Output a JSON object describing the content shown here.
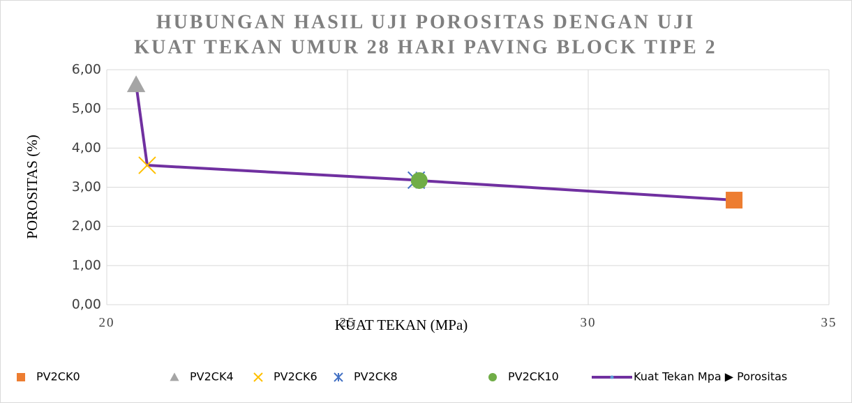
{
  "chart_data": {
    "type": "scatter",
    "title": [
      "HUBUNGAN HASIL UJI POROSITAS DENGAN UJI",
      "KUAT TEKAN UMUR 28 HARI PAVING BLOCK TIPE 2"
    ],
    "xlabel": "KUAT TEKAN (MPa)",
    "ylabel": "POROSITAS (%)",
    "xlim": [
      20,
      35
    ],
    "xticks": [
      20,
      25,
      30,
      35
    ],
    "ylim": [
      0,
      6
    ],
    "yticks": [
      {
        "value": 0,
        "label": "0,00"
      },
      {
        "value": 1,
        "label": "1,00"
      },
      {
        "value": 2,
        "label": "2,00"
      },
      {
        "value": 3,
        "label": "3,00"
      },
      {
        "value": 4,
        "label": "4,00"
      },
      {
        "value": 5,
        "label": "5,00"
      },
      {
        "value": 6,
        "label": "6,00"
      }
    ],
    "grid": true,
    "legend": "bottom",
    "series": [
      {
        "name": "PV2CK0",
        "color": "#ED7D31",
        "marker": "square",
        "x": [
          33.03
        ],
        "values": [
          2.67
        ]
      },
      {
        "name": "PV2CK4",
        "color": "#A5A5A5",
        "marker": "triangle",
        "x": [
          20.61
        ],
        "values": [
          5.62
        ]
      },
      {
        "name": "PV2CK6",
        "color": "#FFC000",
        "marker": "x",
        "x": [
          20.84
        ],
        "values": [
          3.56
        ]
      },
      {
        "name": "PV2CK8",
        "color": "#4472C4",
        "marker": "star",
        "x": [
          26.43
        ],
        "values": [
          3.18
        ]
      },
      {
        "name": "PV2CK10",
        "color": "#70AD47",
        "marker": "circle",
        "x": [
          26.49
        ],
        "values": [
          3.17
        ]
      },
      {
        "name": "Kuat Tekan Mpa ▶ Porositas",
        "color": "#7030A0",
        "marker": "line",
        "x": [
          20.61,
          20.84,
          26.43,
          26.49,
          33.03
        ],
        "values": [
          5.62,
          3.56,
          3.18,
          3.17,
          2.67
        ]
      }
    ]
  }
}
